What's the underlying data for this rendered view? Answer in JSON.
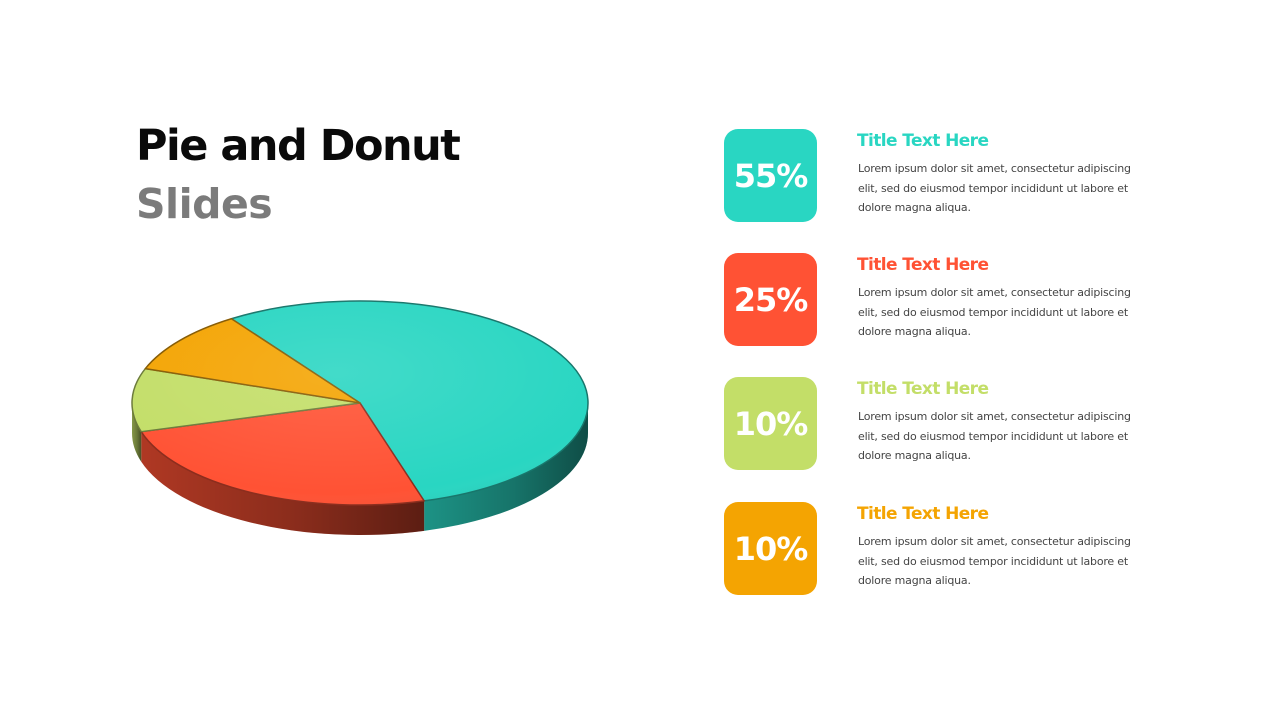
{
  "slide": {
    "title": "Pie and Donut",
    "subtitle": "Slides"
  },
  "colors": {
    "teal": "#29D6C2",
    "red": "#FF5234",
    "green": "#C3DE68",
    "orange": "#F4A402"
  },
  "chart_data": {
    "type": "pie",
    "title": "",
    "categories": [
      "55%",
      "25%",
      "10%",
      "10%"
    ],
    "values": [
      55,
      25,
      10,
      10
    ],
    "colors": [
      "#29D6C2",
      "#FF5234",
      "#C3DE68",
      "#F4A402"
    ],
    "legend": "right"
  },
  "legend": [
    {
      "percent": "55%",
      "title": "Title Text Here",
      "text": "Lorem ipsum dolor sit amet, consectetur adipiscing elit, sed do eiusmod tempor incididunt ut labore et dolore magna aliqua.",
      "color": "#29D6C2"
    },
    {
      "percent": "25%",
      "title": "Title Text Here",
      "text": "Lorem ipsum dolor sit amet, consectetur adipiscing elit, sed do eiusmod tempor incididunt ut labore et dolore magna aliqua.",
      "color": "#FF5234"
    },
    {
      "percent": "10%",
      "title": "Title Text Here",
      "text": "Lorem ipsum dolor sit amet, consectetur adipiscing elit, sed do eiusmod tempor incididunt ut labore et dolore magna aliqua.",
      "color": "#C3DE68"
    },
    {
      "percent": "10%",
      "title": "Title Text Here",
      "text": "Lorem ipsum dolor sit amet, consectetur adipiscing elit, sed do eiusmod tempor incididunt ut labore et dolore magna aliqua.",
      "color": "#F4A402"
    }
  ]
}
